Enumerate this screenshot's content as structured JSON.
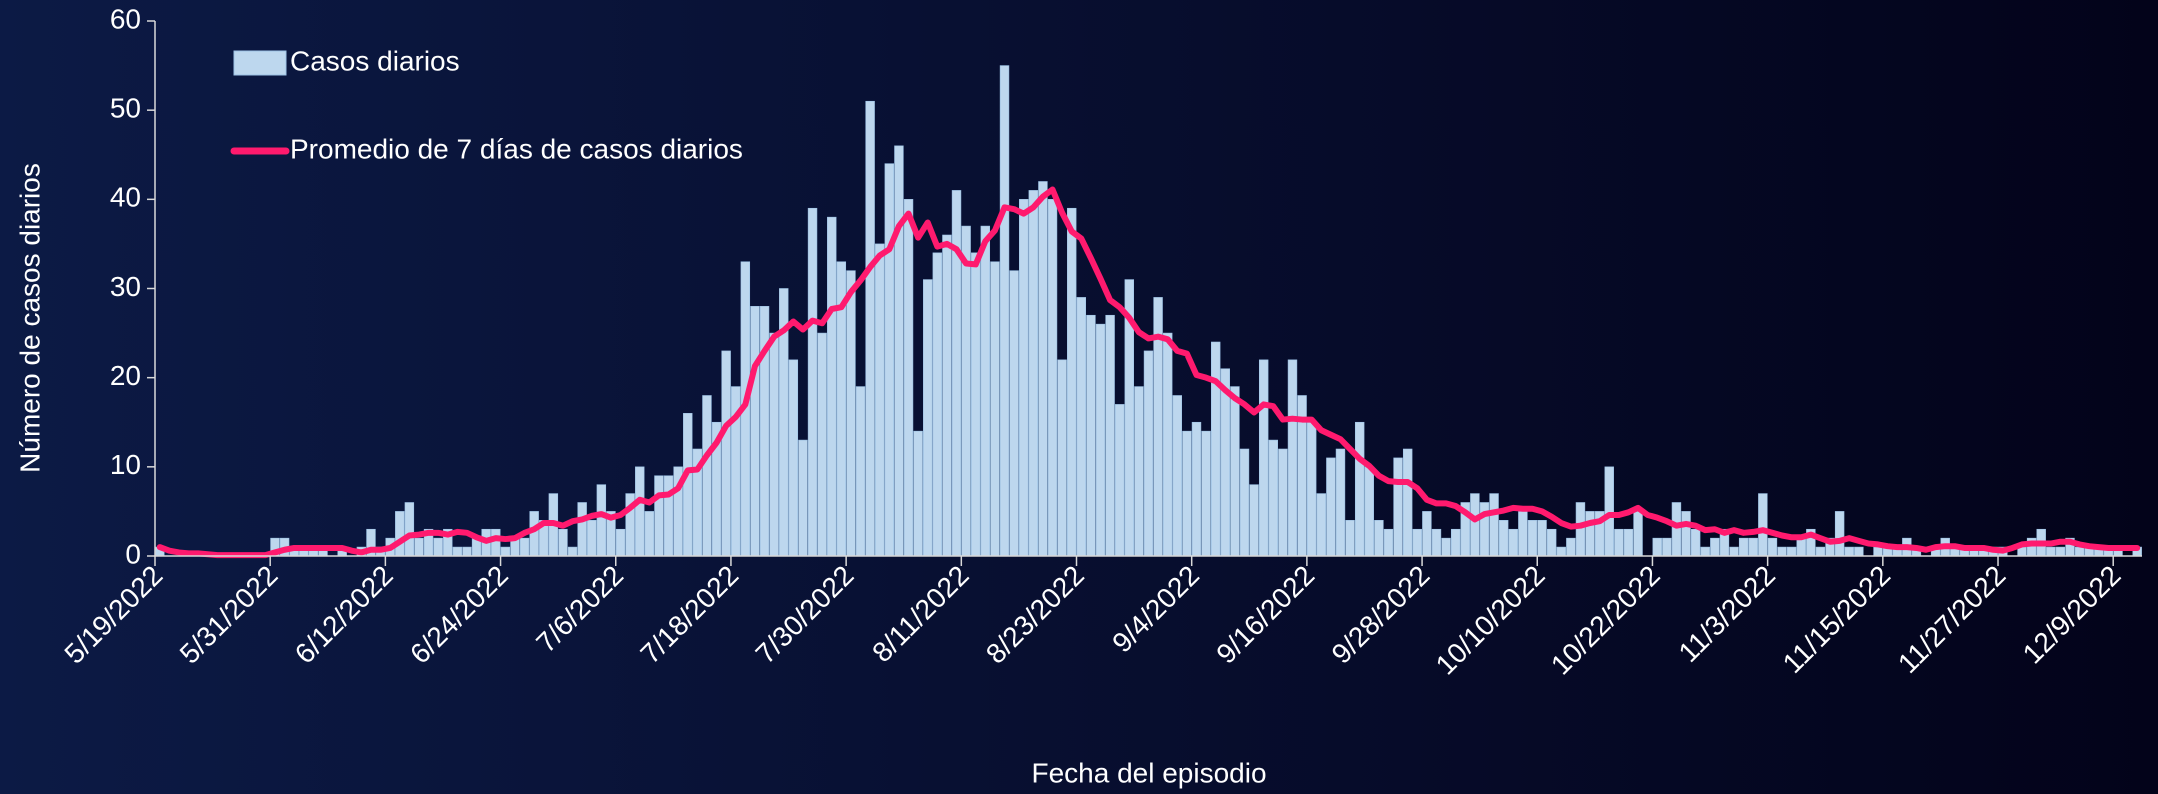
{
  "chart_data": {
    "type": "bar",
    "ylabel": "Número de casos diarios",
    "xlabel": "Fecha del episodio",
    "legend": "upper left",
    "ylim": [
      0,
      60
    ],
    "yticks": [
      0,
      10,
      20,
      30,
      40,
      50,
      60
    ],
    "categories": [
      "5/19/2022",
      null,
      null,
      null,
      null,
      null,
      null,
      null,
      null,
      null,
      null,
      null,
      "5/31/2022",
      null,
      null,
      null,
      null,
      null,
      null,
      null,
      null,
      null,
      null,
      null,
      "6/12/2022",
      null,
      null,
      null,
      null,
      null,
      null,
      null,
      null,
      null,
      null,
      null,
      "6/24/2022",
      null,
      null,
      null,
      null,
      null,
      null,
      null,
      null,
      null,
      null,
      null,
      "7/6/2022",
      null,
      null,
      null,
      null,
      null,
      null,
      null,
      null,
      null,
      null,
      null,
      "7/18/2022",
      null,
      null,
      null,
      null,
      null,
      null,
      null,
      null,
      null,
      null,
      null,
      "7/30/2022",
      null,
      null,
      null,
      null,
      null,
      null,
      null,
      null,
      null,
      null,
      null,
      "8/11/2022",
      null,
      null,
      null,
      null,
      null,
      null,
      null,
      null,
      null,
      null,
      null,
      "8/23/2022",
      null,
      null,
      null,
      null,
      null,
      null,
      null,
      null,
      null,
      null,
      null,
      "9/4/2022",
      null,
      null,
      null,
      null,
      null,
      null,
      null,
      null,
      null,
      null,
      null,
      "9/16/2022",
      null,
      null,
      null,
      null,
      null,
      null,
      null,
      null,
      null,
      null,
      null,
      "9/28/2022",
      null,
      null,
      null,
      null,
      null,
      null,
      null,
      null,
      null,
      null,
      null,
      "10/10/2022",
      null,
      null,
      null,
      null,
      null,
      null,
      null,
      null,
      null,
      null,
      null,
      "10/22/2022",
      null,
      null,
      null,
      null,
      null,
      null,
      null,
      null,
      null,
      null,
      null,
      "11/3/2022",
      null,
      null,
      null,
      null,
      null,
      null,
      null,
      null,
      null,
      null,
      null,
      "11/15/2022",
      null,
      null,
      null,
      null,
      null,
      null,
      null,
      null,
      null,
      null,
      null,
      "11/27/2022",
      null,
      null,
      null,
      null,
      null,
      null,
      null,
      null,
      null,
      null,
      null,
      "12/9/2022",
      null,
      null
    ],
    "series": [
      {
        "name": "Casos diarios",
        "type": "bar",
        "color": "#bdd7ee",
        "values": [
          1,
          0,
          0,
          0,
          0,
          0,
          0,
          0,
          0,
          0,
          0,
          0,
          2,
          2,
          1,
          1,
          1,
          1,
          0,
          1,
          0,
          1,
          3,
          1,
          2,
          5,
          6,
          2,
          3,
          2,
          3,
          1,
          1,
          2,
          3,
          3,
          1,
          2,
          2,
          5,
          4,
          7,
          3,
          1,
          6,
          4,
          8,
          5,
          3,
          7,
          10,
          5,
          9,
          9,
          10,
          16,
          12,
          18,
          15,
          23,
          19,
          33,
          28,
          28,
          25,
          30,
          22,
          13,
          39,
          25,
          38,
          33,
          32,
          19,
          51,
          35,
          44,
          46,
          40,
          14,
          31,
          34,
          36,
          41,
          37,
          34,
          37,
          33,
          55,
          32,
          40,
          41,
          42,
          40,
          22,
          39,
          29,
          27,
          26,
          27,
          17,
          31,
          19,
          23,
          29,
          25,
          18,
          14,
          15,
          14,
          24,
          21,
          19,
          12,
          8,
          22,
          13,
          12,
          22,
          18,
          15,
          7,
          11,
          12,
          4,
          15,
          10,
          4,
          3,
          11,
          12,
          3,
          5,
          3,
          2,
          3,
          6,
          7,
          6,
          7,
          4,
          3,
          5,
          4,
          4,
          3,
          1,
          2,
          6,
          5,
          5,
          10,
          3,
          3,
          5,
          0,
          2,
          2,
          6,
          5,
          3,
          1,
          2,
          3,
          1,
          2,
          2,
          7,
          2,
          1,
          1,
          2,
          3,
          1,
          2,
          5,
          1,
          1,
          0,
          1,
          1,
          1,
          2,
          1,
          0,
          1,
          2,
          1,
          1,
          1,
          1,
          1,
          1,
          0,
          1,
          2,
          3,
          1,
          1,
          2,
          1,
          1,
          1,
          1,
          1,
          0,
          1
        ]
      },
      {
        "name": "Promedio de 7 días de casos diarios",
        "type": "line",
        "color": "#ff1a6e",
        "values": [
          1,
          0.6,
          0.4,
          0.3,
          0.3,
          0.2,
          0.1,
          0.1,
          0.1,
          0.1,
          0.1,
          0.1,
          0.4,
          0.7,
          0.9,
          0.9,
          0.9,
          0.9,
          0.9,
          0.9,
          0.6,
          0.4,
          0.7,
          0.7,
          0.9,
          1.6,
          2.3,
          2.4,
          2.6,
          2.6,
          2.4,
          2.7,
          2.6,
          2.1,
          1.7,
          2,
          1.9,
          2,
          2.6,
          3,
          3.7,
          3.7,
          3.4,
          3.9,
          4.1,
          4.5,
          4.7,
          4.3,
          4.6,
          5.4,
          6.3,
          6,
          6.8,
          6.9,
          7.6,
          9.6,
          9.7,
          11.3,
          12.7,
          14.6,
          15.6,
          17,
          21.3,
          23,
          24.6,
          25.3,
          26.3,
          25.4,
          26.4,
          26.1,
          27.7,
          27.9,
          29.6,
          30.9,
          32.4,
          33.7,
          34.4,
          37,
          38.4,
          35.7,
          37.4,
          34.7,
          35,
          34.4,
          32.8,
          32.7,
          35.3,
          36.5,
          39.1,
          38.9,
          38.4,
          39.1,
          40.3,
          41.1,
          38.5,
          36.4,
          35.6,
          33.4,
          31.1,
          28.7,
          27.9,
          26.7,
          25.1,
          24.4,
          24.6,
          24.3,
          23,
          22.7,
          20.3,
          20,
          19.6,
          18.6,
          17.7,
          17,
          16.1,
          17,
          16.8,
          15.3,
          15.4,
          15.3,
          15.3,
          14.1,
          13.6,
          13.1,
          12,
          10.9,
          10.1,
          9,
          8.4,
          8.3,
          8.3,
          7.6,
          6.3,
          5.9,
          5.9,
          5.6,
          4.9,
          4.1,
          4.7,
          4.9,
          5.1,
          5.4,
          5.3,
          5.3,
          5,
          4.4,
          3.7,
          3.3,
          3.4,
          3.7,
          3.9,
          4.6,
          4.6,
          4.9,
          5.4,
          4.6,
          4.3,
          3.9,
          3.4,
          3.6,
          3.4,
          2.9,
          3,
          2.6,
          2.9,
          2.6,
          2.7,
          2.9,
          2.6,
          2.3,
          2.1,
          2.1,
          2.4,
          2,
          1.6,
          1.7,
          2,
          1.7,
          1.4,
          1.3,
          1.1,
          1,
          1,
          0.9,
          0.7,
          1,
          1.1,
          1.1,
          0.9,
          0.9,
          0.9,
          0.7,
          0.6,
          0.9,
          1.3,
          1.4,
          1.4,
          1.4,
          1.6,
          1.6,
          1.3,
          1.1,
          1,
          0.9,
          0.9,
          0.9,
          0.9
        ]
      }
    ]
  }
}
